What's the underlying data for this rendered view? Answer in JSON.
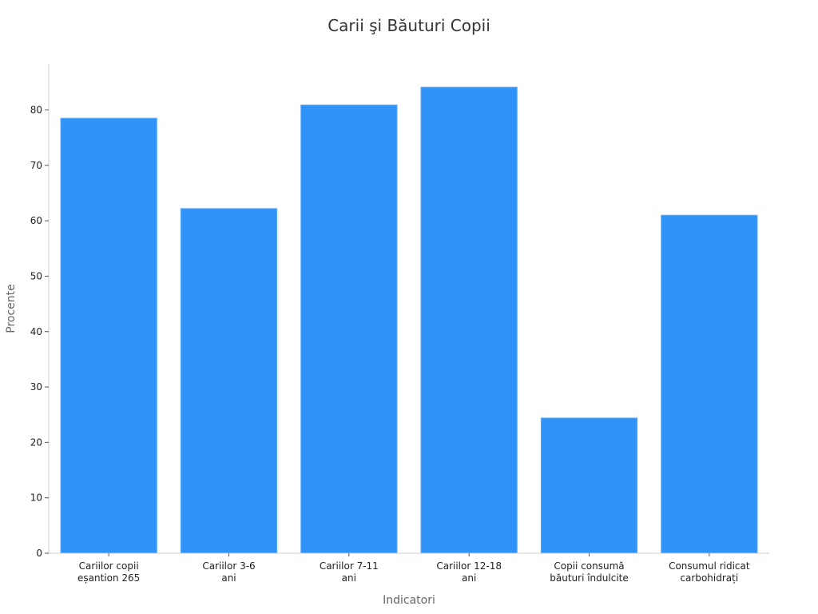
{
  "chart_data": {
    "type": "bar",
    "title": "Carii şi Băuturi Copii",
    "xlabel": "Indicatori",
    "ylabel": "Procente",
    "categories": [
      [
        "Cariilor copii",
        "eșantion 265"
      ],
      [
        "Cariilor 3-6",
        "ani"
      ],
      [
        "Cariilor 7-11",
        "ani"
      ],
      [
        "Cariilor 12-18",
        "ani"
      ],
      [
        "Copii consumă",
        "băuturi îndulcite"
      ],
      [
        "Consumul ridicat",
        "carbohidrați"
      ]
    ],
    "values": [
      78.5,
      62.2,
      80.9,
      84.1,
      24.4,
      61.0
    ],
    "ylim": [
      0,
      88.3
    ],
    "yticks": [
      0,
      10,
      20,
      30,
      40,
      50,
      60,
      70,
      80
    ],
    "grid": false,
    "legend": "none",
    "bar_color": "#2f93f8",
    "bar_edge_color": "#5aa9f7"
  }
}
